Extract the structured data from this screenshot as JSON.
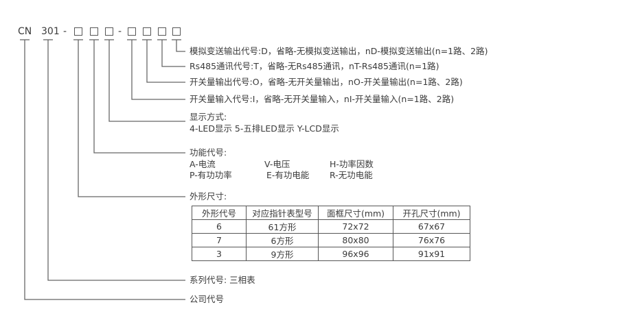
{
  "code": {
    "prefix": "CN",
    "series": "301",
    "dash": "-"
  },
  "analog_output": "模拟变送输出代号:D，省略-无模拟变送输出，nD-模拟变送输出(n=1路、2路)",
  "rs485": "Rs485通讯代号:T，省略-无Rs485通讯，nT-Rs485通讯(n=1路)",
  "switch_output": "开关量输出代号:O，省略-无开关量输出，nO-开关量输出(n=1路、2路)",
  "switch_input": "开关量输入代号:I，省略-无开关量输入，nI-开关量输入(n=1路、2路)",
  "display": {
    "title": "显示方式:",
    "options": "4-LED显示 5-五排LED显示 Y-LCD显示"
  },
  "function": {
    "title": "功能代号:",
    "items": [
      "A-电流",
      "V-电压",
      "H-功率因数",
      "P-有功功率",
      "E-有功电能",
      "R-无功电能"
    ]
  },
  "shape": {
    "title": "外形尺寸:",
    "headers": [
      "外形代号",
      "对应指针表型号",
      "面框尺寸(mm)",
      "开孔尺寸(mm)"
    ],
    "rows": [
      [
        "6",
        "61方形",
        "72x72",
        "67x67"
      ],
      [
        "7",
        "6方形",
        "80x80",
        "76x76"
      ],
      [
        "3",
        "9方形",
        "96x96",
        "91x91"
      ]
    ]
  },
  "series_code": "系列代号: 三相表",
  "company_code": "公司代号"
}
